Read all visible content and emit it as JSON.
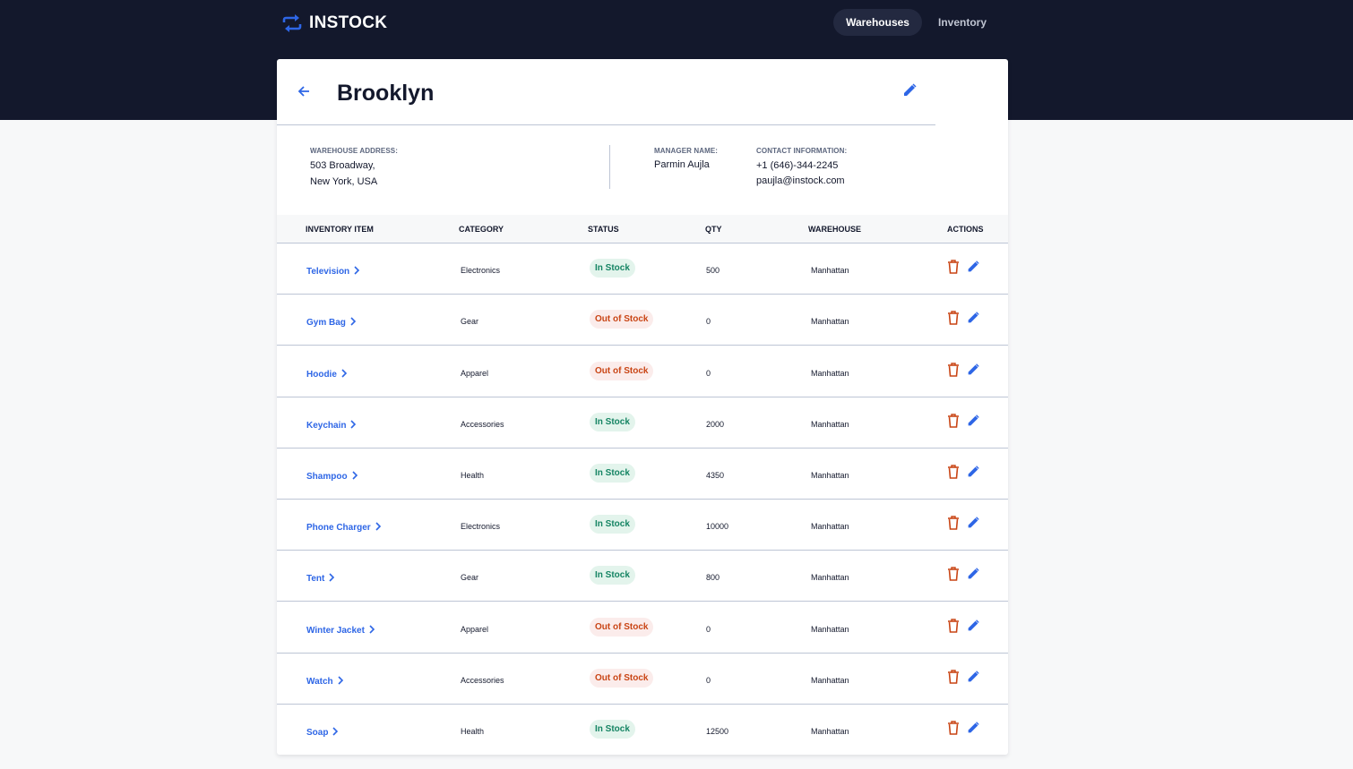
{
  "app": {
    "name": "INSTOCK"
  },
  "nav": {
    "warehouses": "Warehouses",
    "inventory": "Inventory"
  },
  "warehouse": {
    "title": "Brooklyn",
    "address_label": "WAREHOUSE ADDRESS:",
    "address_line1": "503 Broadway,",
    "address_line2": "New York, USA",
    "manager_label": "MANAGER NAME:",
    "manager_name": "Parmin Aujla",
    "contact_label": "CONTACT INFORMATION:",
    "contact_phone": "+1 (646)-344-2245",
    "contact_email": "paujla@instock.com"
  },
  "table": {
    "headers": {
      "item": "INVENTORY ITEM",
      "category": "CATEGORY",
      "status": "STATUS",
      "qty": "QTY",
      "warehouse": "WAREHOUSE",
      "actions": "ACTIONS"
    },
    "rows": [
      {
        "item": "Television",
        "category": "Electronics",
        "status": "In Stock",
        "qty": "500",
        "warehouse": "Manhattan"
      },
      {
        "item": "Gym Bag",
        "category": "Gear",
        "status": "Out of Stock",
        "qty": "0",
        "warehouse": "Manhattan"
      },
      {
        "item": "Hoodie",
        "category": "Apparel",
        "status": "Out of Stock",
        "qty": "0",
        "warehouse": "Manhattan"
      },
      {
        "item": "Keychain",
        "category": "Accessories",
        "status": "In Stock",
        "qty": "2000",
        "warehouse": "Manhattan"
      },
      {
        "item": "Shampoo",
        "category": "Health",
        "status": "In Stock",
        "qty": "4350",
        "warehouse": "Manhattan"
      },
      {
        "item": "Phone Charger",
        "category": "Electronics",
        "status": "In Stock",
        "qty": "10000",
        "warehouse": "Manhattan"
      },
      {
        "item": "Tent",
        "category": "Gear",
        "status": "In Stock",
        "qty": "800",
        "warehouse": "Manhattan"
      },
      {
        "item": "Winter Jacket",
        "category": "Apparel",
        "status": "Out of Stock",
        "qty": "0",
        "warehouse": "Manhattan"
      },
      {
        "item": "Watch",
        "category": "Accessories",
        "status": "Out of Stock",
        "qty": "0",
        "warehouse": "Manhattan"
      },
      {
        "item": "Soap",
        "category": "Health",
        "status": "In Stock",
        "qty": "12500",
        "warehouse": "Manhattan"
      }
    ]
  },
  "colors": {
    "header_bg": "#13182c",
    "accent": "#2e66e6",
    "in_stock": "#158463",
    "out_of_stock": "#c94515"
  },
  "icons": {
    "logo": "swap-arrows-icon",
    "back": "arrow-back-icon",
    "edit": "pencil-icon",
    "delete": "trash-icon",
    "chevron": "chevron-right-icon"
  }
}
